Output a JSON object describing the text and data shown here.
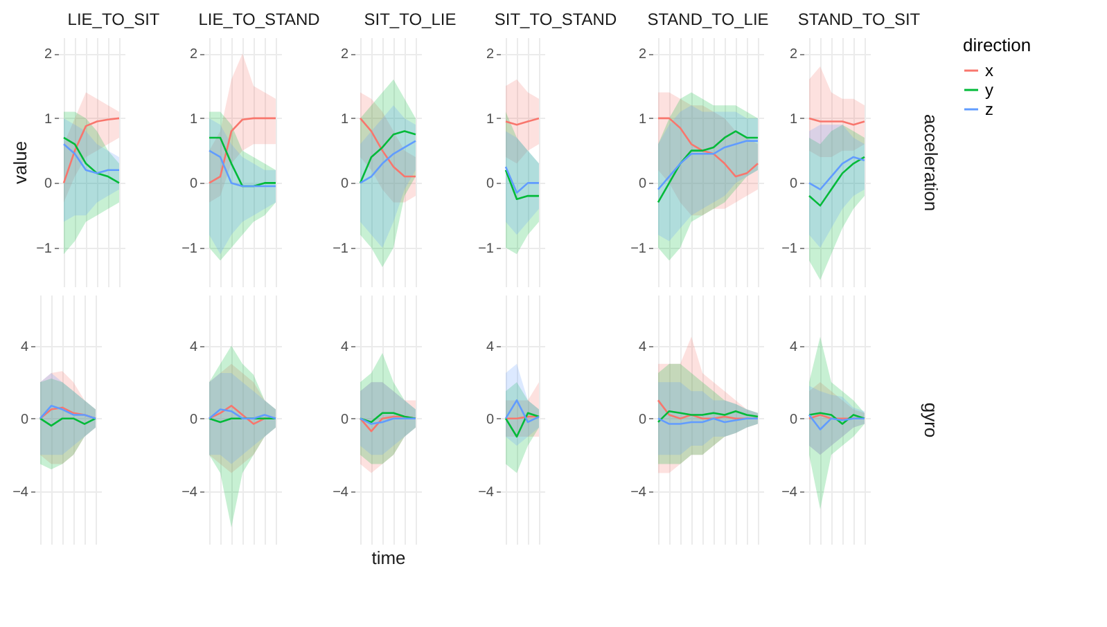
{
  "chart_data": [
    {
      "type": "line",
      "title": "LIE_TO_SIT",
      "ylabel": "value",
      "categories": [
        null,
        null,
        null,
        null,
        null,
        null
      ],
      "ylim": [
        -1.6,
        2.25
      ],
      "yticks": [
        -1,
        0,
        1,
        2
      ],
      "grid": true,
      "tick_labels": "y",
      "series": [
        {
          "color": "#f8766d",
          "values": [
            0,
            0.5,
            0.88,
            0.95,
            0.98,
            1.0
          ],
          "lower": [
            -0.3,
            0.1,
            0.4,
            0.5,
            0.6,
            0.7
          ],
          "upper": [
            0.6,
            1.0,
            1.4,
            1.3,
            1.2,
            1.1
          ]
        },
        {
          "color": "#00ba38",
          "values": [
            0.7,
            0.6,
            0.3,
            0.15,
            0.1,
            0.0
          ],
          "lower": [
            -1.1,
            -0.9,
            -0.6,
            -0.5,
            -0.4,
            -0.3
          ],
          "upper": [
            1.1,
            1.1,
            1.0,
            0.8,
            0.5,
            0.3
          ]
        },
        {
          "color": "#619cff",
          "values": [
            0.6,
            0.45,
            0.2,
            0.15,
            0.2,
            0.2
          ],
          "lower": [
            -0.6,
            -0.5,
            -0.5,
            -0.3,
            -0.2,
            -0.1
          ],
          "upper": [
            1.0,
            0.9,
            0.8,
            0.6,
            0.5,
            0.4
          ]
        }
      ]
    },
    {
      "type": "line",
      "title": "LIE_TO_STAND",
      "categories": [
        null,
        null,
        null,
        null,
        null,
        null,
        null
      ],
      "ylim": [
        -1.6,
        2.25
      ],
      "yticks": [
        -1,
        0,
        1,
        2
      ],
      "grid": true,
      "tick_labels": "y",
      "series": [
        {
          "color": "#f8766d",
          "values": [
            0,
            0.1,
            0.8,
            0.98,
            1.0,
            1.0,
            1.0
          ],
          "lower": [
            -0.3,
            -0.2,
            0.3,
            0.5,
            0.6,
            0.6,
            0.6
          ],
          "upper": [
            0.5,
            0.8,
            1.6,
            2.0,
            1.5,
            1.4,
            1.3
          ]
        },
        {
          "color": "#00ba38",
          "values": [
            0.7,
            0.7,
            0.3,
            -0.05,
            -0.05,
            0.0,
            0.0
          ],
          "lower": [
            -1.0,
            -1.2,
            -1.0,
            -0.8,
            -0.6,
            -0.5,
            -0.3
          ],
          "upper": [
            1.1,
            1.1,
            0.9,
            0.5,
            0.4,
            0.3,
            0.2
          ]
        },
        {
          "color": "#619cff",
          "values": [
            0.5,
            0.4,
            0.0,
            -0.05,
            -0.05,
            -0.05,
            -0.05
          ],
          "lower": [
            -0.8,
            -1.1,
            -0.8,
            -0.6,
            -0.5,
            -0.4,
            -0.3
          ],
          "upper": [
            1.0,
            0.9,
            0.6,
            0.4,
            0.3,
            0.2,
            0.2
          ]
        }
      ]
    },
    {
      "type": "line",
      "title": "SIT_TO_LIE",
      "categories": [
        null,
        null,
        null,
        null,
        null,
        null
      ],
      "ylim": [
        -1.6,
        2.25
      ],
      "yticks": [
        -1,
        0,
        1,
        2
      ],
      "grid": true,
      "tick_labels": "y",
      "series": [
        {
          "color": "#f8766d",
          "values": [
            1.0,
            0.8,
            0.5,
            0.25,
            0.1,
            0.1
          ],
          "lower": [
            0.4,
            0.2,
            -0.1,
            -0.3,
            -0.3,
            -0.2
          ],
          "upper": [
            1.4,
            1.3,
            1.1,
            0.8,
            0.5,
            0.4
          ]
        },
        {
          "color": "#00ba38",
          "values": [
            0.0,
            0.4,
            0.55,
            0.75,
            0.8,
            0.75
          ],
          "lower": [
            -0.8,
            -1.0,
            -1.3,
            -1.0,
            -0.2,
            0.1
          ],
          "upper": [
            1.0,
            1.2,
            1.4,
            1.6,
            1.3,
            1.0
          ]
        },
        {
          "color": "#619cff",
          "values": [
            0.0,
            0.1,
            0.3,
            0.45,
            0.55,
            0.65
          ],
          "lower": [
            -0.6,
            -0.8,
            -1.0,
            -0.6,
            -0.1,
            0.2
          ],
          "upper": [
            0.6,
            0.8,
            1.0,
            1.2,
            1.0,
            0.9
          ]
        }
      ]
    },
    {
      "type": "line",
      "title": "SIT_TO_STAND",
      "categories": [
        null,
        null,
        null,
        null
      ],
      "ylim": [
        -1.6,
        2.25
      ],
      "yticks": [
        -1,
        0,
        1,
        2
      ],
      "grid": true,
      "tick_labels": "y",
      "series": [
        {
          "color": "#f8766d",
          "values": [
            0.95,
            0.9,
            0.95,
            1.0
          ],
          "lower": [
            0.4,
            0.3,
            0.5,
            0.6
          ],
          "upper": [
            1.5,
            1.6,
            1.4,
            1.3
          ]
        },
        {
          "color": "#00ba38",
          "values": [
            0.2,
            -0.25,
            -0.2,
            -0.2
          ],
          "lower": [
            -1.0,
            -1.1,
            -0.8,
            -0.6
          ],
          "upper": [
            1.1,
            0.7,
            0.5,
            0.3
          ]
        },
        {
          "color": "#619cff",
          "values": [
            0.25,
            -0.15,
            0.0,
            0.0
          ],
          "lower": [
            -0.6,
            -0.8,
            -0.6,
            -0.4
          ],
          "upper": [
            0.8,
            0.7,
            0.5,
            0.3
          ]
        }
      ]
    },
    {
      "type": "line",
      "title": "STAND_TO_LIE",
      "categories": [
        null,
        null,
        null,
        null,
        null,
        null,
        null,
        null,
        null,
        null
      ],
      "ylim": [
        -1.6,
        2.25
      ],
      "yticks": [
        -1,
        0,
        1,
        2
      ],
      "grid": true,
      "tick_labels": "y",
      "series": [
        {
          "color": "#f8766d",
          "values": [
            1.0,
            1.0,
            0.85,
            0.6,
            0.5,
            0.45,
            0.3,
            0.1,
            0.15,
            0.3
          ],
          "lower": [
            0.2,
            0.0,
            -0.3,
            -0.5,
            -0.5,
            -0.4,
            -0.4,
            -0.3,
            -0.2,
            -0.1
          ],
          "upper": [
            1.4,
            1.4,
            1.3,
            1.2,
            1.2,
            1.1,
            1.0,
            0.8,
            0.7,
            0.6
          ]
        },
        {
          "color": "#00ba38",
          "values": [
            -0.3,
            0.0,
            0.3,
            0.5,
            0.5,
            0.55,
            0.7,
            0.8,
            0.7,
            0.7
          ],
          "lower": [
            -1.0,
            -1.2,
            -1.0,
            -0.6,
            -0.5,
            -0.4,
            -0.3,
            -0.1,
            0.1,
            0.2
          ],
          "upper": [
            0.6,
            1.0,
            1.3,
            1.4,
            1.3,
            1.2,
            1.2,
            1.2,
            1.1,
            1.0
          ]
        },
        {
          "color": "#619cff",
          "values": [
            -0.1,
            0.1,
            0.3,
            0.45,
            0.45,
            0.45,
            0.55,
            0.6,
            0.65,
            0.65
          ],
          "lower": [
            -0.8,
            -0.9,
            -0.7,
            -0.5,
            -0.4,
            -0.3,
            -0.2,
            0.0,
            0.1,
            0.2
          ],
          "upper": [
            0.6,
            0.9,
            1.1,
            1.2,
            1.1,
            1.1,
            1.1,
            1.1,
            1.0,
            1.0
          ]
        }
      ]
    },
    {
      "type": "line",
      "title": "STAND_TO_SIT",
      "y2label": "acceleration",
      "legend_title": "direction",
      "legend": "right",
      "categories": [
        null,
        null,
        null,
        null,
        null,
        null
      ],
      "ylim": [
        -1.6,
        2.25
      ],
      "yticks": [
        -1,
        0,
        1,
        2
      ],
      "grid": true,
      "tick_labels": "y",
      "series": [
        {
          "name": "x",
          "color": "#f8766d",
          "values": [
            1.0,
            0.95,
            0.95,
            0.95,
            0.9,
            0.95
          ],
          "lower": [
            0.5,
            0.4,
            0.4,
            0.5,
            0.5,
            0.6
          ],
          "upper": [
            1.6,
            1.8,
            1.4,
            1.3,
            1.3,
            1.2
          ]
        },
        {
          "name": "y",
          "color": "#00ba38",
          "values": [
            -0.2,
            -0.35,
            -0.1,
            0.15,
            0.3,
            0.4
          ],
          "lower": [
            -1.2,
            -1.5,
            -1.1,
            -0.7,
            -0.4,
            -0.2
          ],
          "upper": [
            0.7,
            0.6,
            0.8,
            0.9,
            0.8,
            0.7
          ]
        },
        {
          "name": "z",
          "color": "#619cff",
          "values": [
            0.0,
            -0.1,
            0.1,
            0.3,
            0.4,
            0.35
          ],
          "lower": [
            -0.8,
            -1.0,
            -0.7,
            -0.4,
            -0.2,
            -0.1
          ],
          "upper": [
            0.8,
            0.9,
            0.9,
            0.9,
            0.7,
            0.6
          ]
        }
      ]
    },
    {
      "type": "line",
      "categories": [
        null,
        null,
        null,
        null,
        null,
        null
      ],
      "ylim": [
        -6.9,
        6.8
      ],
      "yticks": [
        -4,
        0,
        4
      ],
      "grid": true,
      "tick_labels": "y",
      "series": [
        {
          "color": "#f8766d",
          "values": [
            0,
            0.5,
            0.6,
            0.3,
            0.2,
            0
          ],
          "lower": [
            -2,
            -2.5,
            -2.5,
            -2,
            -1,
            -0.5
          ],
          "upper": [
            2,
            2.5,
            2.6,
            2,
            1,
            0.5
          ]
        },
        {
          "color": "#00ba38",
          "values": [
            0,
            -0.4,
            0,
            0,
            -0.3,
            0
          ],
          "lower": [
            -2.5,
            -2.8,
            -2.5,
            -2,
            -1,
            -0.5
          ],
          "upper": [
            2,
            2.2,
            2,
            1.5,
            1,
            0.5
          ]
        },
        {
          "color": "#619cff",
          "values": [
            0,
            0.7,
            0.5,
            0.2,
            0.2,
            0
          ],
          "lower": [
            -2,
            -2,
            -2,
            -1.5,
            -1,
            -0.5
          ],
          "upper": [
            2,
            2.5,
            2,
            1.5,
            1,
            0.5
          ]
        }
      ]
    },
    {
      "type": "line",
      "categories": [
        null,
        null,
        null,
        null,
        null,
        null,
        null
      ],
      "ylim": [
        -6.9,
        6.8
      ],
      "yticks": [
        -4,
        0,
        4
      ],
      "grid": true,
      "tick_labels": "y",
      "series": [
        {
          "color": "#f8766d",
          "values": [
            0,
            0.3,
            0.7,
            0.2,
            -0.3,
            0,
            0
          ],
          "lower": [
            -2,
            -2.5,
            -3,
            -2.5,
            -2,
            -1,
            -0.5
          ],
          "upper": [
            2,
            2.5,
            3,
            2.5,
            2,
            1,
            0.5
          ]
        },
        {
          "color": "#00ba38",
          "values": [
            0,
            -0.2,
            0,
            0,
            0,
            0,
            0
          ],
          "lower": [
            -2,
            -3,
            -6,
            -3,
            -2,
            -1,
            -0.5
          ],
          "upper": [
            2,
            3,
            4,
            3,
            2.4,
            1,
            0.5
          ]
        },
        {
          "color": "#619cff",
          "values": [
            0,
            0.5,
            0.4,
            0,
            0,
            0.2,
            0
          ],
          "lower": [
            -2,
            -2,
            -2.5,
            -2,
            -1.5,
            -1,
            -0.5
          ],
          "upper": [
            2,
            2.5,
            2.5,
            2,
            1.5,
            1,
            0.5
          ]
        }
      ]
    },
    {
      "type": "line",
      "xlabel": "time",
      "categories": [
        null,
        null,
        null,
        null,
        null,
        null
      ],
      "ylim": [
        -6.9,
        6.8
      ],
      "yticks": [
        -4,
        0,
        4
      ],
      "grid": true,
      "tick_labels": "y",
      "series": [
        {
          "color": "#f8766d",
          "values": [
            0,
            -0.7,
            0,
            0.1,
            0.1,
            0
          ],
          "lower": [
            -2.5,
            -3,
            -2.5,
            -2,
            -1,
            -0.5
          ],
          "upper": [
            1.5,
            2,
            2,
            1.5,
            1,
            1
          ]
        },
        {
          "color": "#00ba38",
          "values": [
            0,
            -0.2,
            0.3,
            0.3,
            0.1,
            0
          ],
          "lower": [
            -2,
            -2.5,
            -2.5,
            -2,
            -1,
            -0.5
          ],
          "upper": [
            2,
            2.5,
            3.6,
            2,
            1,
            0.5
          ]
        },
        {
          "color": "#619cff",
          "values": [
            0,
            -0.3,
            -0.2,
            0,
            0,
            0
          ],
          "lower": [
            -1.5,
            -2,
            -2,
            -1.5,
            -1,
            -0.5
          ],
          "upper": [
            1.5,
            2,
            2,
            1.5,
            1,
            0.5
          ]
        }
      ]
    },
    {
      "type": "line",
      "categories": [
        null,
        null,
        null,
        null
      ],
      "ylim": [
        -6.9,
        6.8
      ],
      "yticks": [
        -4,
        0,
        4
      ],
      "grid": true,
      "tick_labels": "y",
      "series": [
        {
          "color": "#f8766d",
          "values": [
            0,
            0,
            0.1,
            0.1
          ],
          "lower": [
            -1,
            -1,
            -1,
            -1
          ],
          "upper": [
            1,
            1,
            1,
            2
          ]
        },
        {
          "color": "#00ba38",
          "values": [
            0,
            -1,
            0.3,
            0.1
          ],
          "lower": [
            -2.5,
            -3,
            -1.5,
            -0.5
          ],
          "upper": [
            1.5,
            2,
            1,
            0.5
          ]
        },
        {
          "color": "#619cff",
          "values": [
            0,
            1,
            -0.2,
            0.1
          ],
          "lower": [
            -1,
            -1.5,
            -1,
            -0.5
          ],
          "upper": [
            2.5,
            3,
            1,
            0.5
          ]
        }
      ]
    },
    {
      "type": "line",
      "categories": [
        null,
        null,
        null,
        null,
        null,
        null,
        null,
        null,
        null,
        null
      ],
      "ylim": [
        -6.9,
        6.8
      ],
      "yticks": [
        -4,
        0,
        4
      ],
      "grid": true,
      "tick_labels": "y",
      "series": [
        {
          "color": "#f8766d",
          "values": [
            1,
            0.2,
            0,
            0.2,
            0,
            0,
            0.1,
            0,
            0,
            0
          ],
          "lower": [
            -3,
            -3,
            -2.5,
            -2,
            -2,
            -1.5,
            -1,
            -0.8,
            -0.5,
            -0.3
          ],
          "upper": [
            3,
            3,
            3,
            4.5,
            2.5,
            2,
            1.5,
            1,
            0.5,
            0.3
          ]
        },
        {
          "color": "#00ba38",
          "values": [
            -0.2,
            0.4,
            0.3,
            0.2,
            0.2,
            0.3,
            0.2,
            0.4,
            0.2,
            0.1
          ],
          "lower": [
            -2.5,
            -2.5,
            -2.5,
            -2,
            -2,
            -1.5,
            -1,
            -0.8,
            -0.5,
            -0.3
          ],
          "upper": [
            2.5,
            3,
            3,
            2.5,
            2,
            1.5,
            1,
            0.8,
            0.5,
            0.3
          ]
        },
        {
          "color": "#619cff",
          "values": [
            0,
            -0.3,
            -0.3,
            -0.2,
            -0.2,
            0,
            -0.2,
            -0.1,
            0,
            0
          ],
          "lower": [
            -2,
            -2,
            -2,
            -1.5,
            -1.5,
            -1,
            -1,
            -0.8,
            -0.5,
            -0.3
          ],
          "upper": [
            2,
            2,
            2,
            1.5,
            1.5,
            1,
            1,
            0.8,
            0.5,
            0.3
          ]
        }
      ]
    },
    {
      "type": "line",
      "y2label": "gyro",
      "categories": [
        null,
        null,
        null,
        null,
        null,
        null
      ],
      "ylim": [
        -6.9,
        6.8
      ],
      "yticks": [
        -4,
        0,
        4
      ],
      "grid": true,
      "tick_labels": "y",
      "series": [
        {
          "color": "#f8766d",
          "values": [
            0,
            0.2,
            0,
            0,
            0,
            0
          ],
          "lower": [
            -1.5,
            -2,
            -1.5,
            -1,
            -0.5,
            -0.3
          ],
          "upper": [
            1.5,
            2,
            1.5,
            1,
            0.5,
            0.3
          ]
        },
        {
          "color": "#00ba38",
          "values": [
            0.2,
            0.3,
            0.2,
            -0.3,
            0.2,
            0
          ],
          "lower": [
            -2,
            -5,
            -2,
            -1.5,
            -1,
            -0.3
          ],
          "upper": [
            2,
            4.5,
            2,
            1.5,
            1,
            0.3
          ]
        },
        {
          "color": "#619cff",
          "values": [
            0.2,
            -0.6,
            0,
            -0.1,
            0,
            0
          ],
          "lower": [
            -1.5,
            -2,
            -1.5,
            -1,
            -0.5,
            -0.3
          ],
          "upper": [
            1.8,
            1.5,
            1.3,
            1.2,
            0.6,
            0.4
          ]
        }
      ]
    }
  ]
}
